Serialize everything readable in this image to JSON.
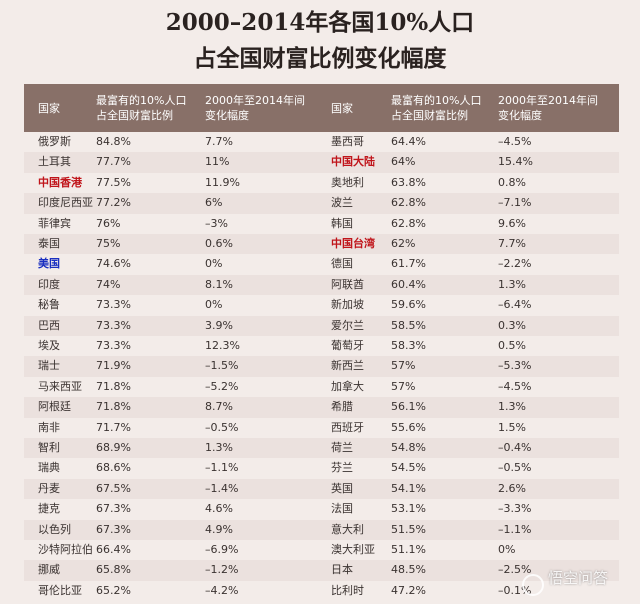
{
  "title_line1": "2000–2014年各国10%人口",
  "title_line2": "占全国财富比例变化幅度",
  "headers": {
    "country": "国家",
    "share_line1": "最富有的10%人口",
    "share_line2": "占全国财富比例",
    "change_line1": "2000年至2014年间",
    "change_line2": "变化幅度"
  },
  "left_rows": [
    {
      "country": "俄罗斯",
      "share": "84.8%",
      "change": "7.7%"
    },
    {
      "country": "土耳其",
      "share": "77.7%",
      "change": "11%"
    },
    {
      "country": "中国香港",
      "share": "77.5%",
      "change": "11.9%",
      "highlight": "red"
    },
    {
      "country": "印度尼西亚",
      "share": "77.2%",
      "change": "6%"
    },
    {
      "country": "菲律宾",
      "share": "76%",
      "change": "–3%"
    },
    {
      "country": "泰国",
      "share": "75%",
      "change": "0.6%"
    },
    {
      "country": "美国",
      "share": "74.6%",
      "change": "0%",
      "highlight": "blue"
    },
    {
      "country": "印度",
      "share": "74%",
      "change": "8.1%"
    },
    {
      "country": "秘鲁",
      "share": "73.3%",
      "change": "0%"
    },
    {
      "country": "巴西",
      "share": "73.3%",
      "change": "3.9%"
    },
    {
      "country": "埃及",
      "share": "73.3%",
      "change": "12.3%"
    },
    {
      "country": "瑞士",
      "share": "71.9%",
      "change": "–1.5%"
    },
    {
      "country": "马来西亚",
      "share": "71.8%",
      "change": "–5.2%"
    },
    {
      "country": "阿根廷",
      "share": "71.8%",
      "change": "8.7%"
    },
    {
      "country": "南非",
      "share": "71.7%",
      "change": "–0.5%"
    },
    {
      "country": "智利",
      "share": "68.9%",
      "change": "1.3%"
    },
    {
      "country": "瑞典",
      "share": "68.6%",
      "change": "–1.1%"
    },
    {
      "country": "丹麦",
      "share": "67.5%",
      "change": "–1.4%"
    },
    {
      "country": "捷克",
      "share": "67.3%",
      "change": "4.6%"
    },
    {
      "country": "以色列",
      "share": "67.3%",
      "change": "4.9%"
    },
    {
      "country": "沙特阿拉伯",
      "share": "66.4%",
      "change": "–6.9%"
    },
    {
      "country": "挪威",
      "share": "65.8%",
      "change": "–1.2%"
    },
    {
      "country": "哥伦比亚",
      "share": "65.2%",
      "change": "–4.2%"
    }
  ],
  "right_rows": [
    {
      "country": "墨西哥",
      "share": "64.4%",
      "change": "–4.5%"
    },
    {
      "country": "中国大陆",
      "share": "64%",
      "change": "15.4%",
      "highlight": "red"
    },
    {
      "country": "奥地利",
      "share": "63.8%",
      "change": "0.8%"
    },
    {
      "country": "波兰",
      "share": "62.8%",
      "change": "–7.1%"
    },
    {
      "country": "韩国",
      "share": "62.8%",
      "change": "9.6%"
    },
    {
      "country": "中国台湾",
      "share": "62%",
      "change": "7.7%",
      "highlight": "red"
    },
    {
      "country": "德国",
      "share": "61.7%",
      "change": "–2.2%"
    },
    {
      "country": "阿联酋",
      "share": "60.4%",
      "change": "1.3%"
    },
    {
      "country": "新加坡",
      "share": "59.6%",
      "change": "–6.4%"
    },
    {
      "country": "爱尔兰",
      "share": "58.5%",
      "change": "0.3%"
    },
    {
      "country": "葡萄牙",
      "share": "58.3%",
      "change": "0.5%"
    },
    {
      "country": "新西兰",
      "share": "57%",
      "change": "–5.3%"
    },
    {
      "country": "加拿大",
      "share": "57%",
      "change": "–4.5%"
    },
    {
      "country": "希腊",
      "share": "56.1%",
      "change": "1.3%"
    },
    {
      "country": "西班牙",
      "share": "55.6%",
      "change": "1.5%"
    },
    {
      "country": "荷兰",
      "share": "54.8%",
      "change": "–0.4%"
    },
    {
      "country": "芬兰",
      "share": "54.5%",
      "change": "–0.5%"
    },
    {
      "country": "英国",
      "share": "54.1%",
      "change": "2.6%"
    },
    {
      "country": "法国",
      "share": "53.1%",
      "change": "–3.3%"
    },
    {
      "country": "意大利",
      "share": "51.5%",
      "change": "–1.1%"
    },
    {
      "country": "澳大利亚",
      "share": "51.1%",
      "change": "0%"
    },
    {
      "country": "日本",
      "share": "48.5%",
      "change": "–2.5%"
    },
    {
      "country": "比利时",
      "share": "47.2%",
      "change": "–0.1%"
    }
  ],
  "watermark": "悟空问答",
  "colors": {
    "header_bg": "#887068",
    "row_alt": "#ebe1de",
    "page_bg": "#f3ece9",
    "highlight_red": "#c0141a",
    "highlight_blue": "#1a2fc0"
  }
}
